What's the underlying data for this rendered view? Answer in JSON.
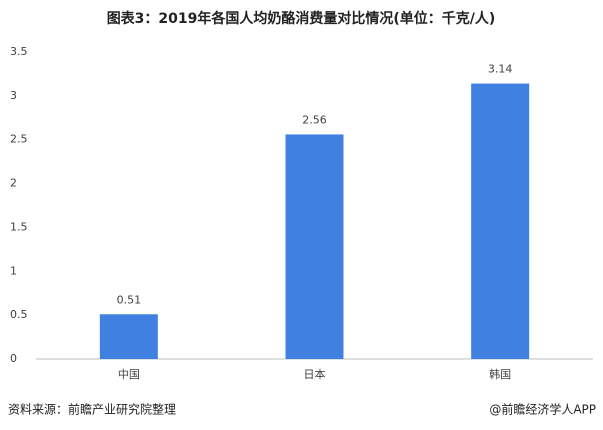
{
  "chart_data": {
    "type": "bar",
    "title": "图表3：2019年各国人均奶酪消费量对比情况(单位：千克/人)",
    "categories": [
      "中国",
      "日本",
      "韩国"
    ],
    "values": [
      0.51,
      2.56,
      3.14
    ],
    "color": "#3f80e0",
    "ylim": [
      0,
      3.5
    ],
    "yticks": [
      0,
      0.5,
      1,
      1.5,
      2,
      2.5,
      3,
      3.5
    ],
    "grid": false,
    "source": "资料来源：前瞻产业研究院整理",
    "credit": "@前瞻经济学人APP"
  }
}
